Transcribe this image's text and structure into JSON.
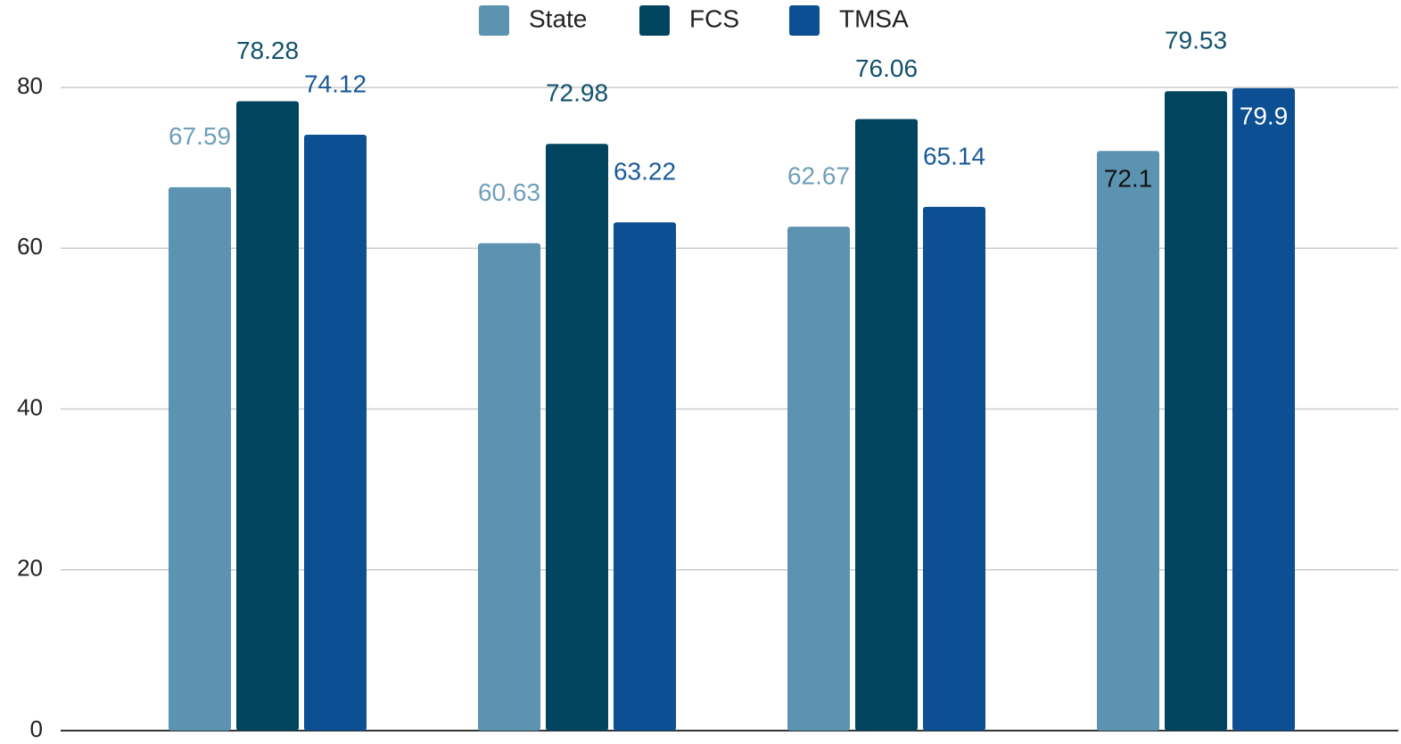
{
  "chart_data": {
    "type": "bar",
    "categories": [
      null,
      null,
      null,
      null
    ],
    "series": [
      {
        "name": "State",
        "color": "#5b93b1",
        "values": [
          67.59,
          60.63,
          62.67,
          72.1
        ]
      },
      {
        "name": "FCS",
        "color": "#00445f",
        "values": [
          78.28,
          72.98,
          76.06,
          79.53
        ]
      },
      {
        "name": "TMSA",
        "color": "#0c4f93",
        "values": [
          74.12,
          63.22,
          65.14,
          79.9
        ]
      }
    ],
    "ylim": [
      0,
      80
    ],
    "yticks": [
      0,
      20,
      40,
      60,
      80
    ],
    "grid": true,
    "legend": "top"
  }
}
